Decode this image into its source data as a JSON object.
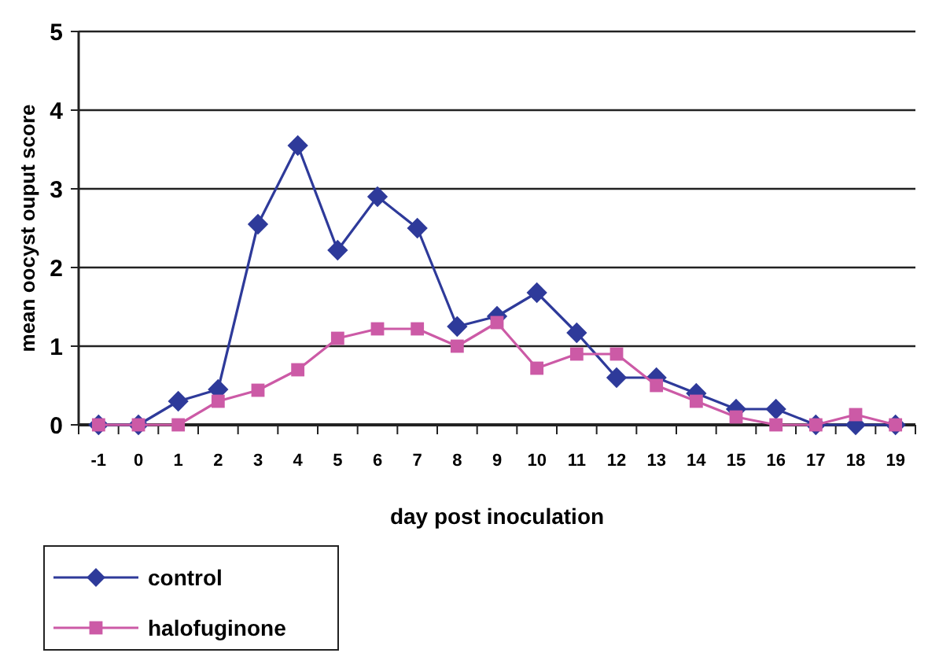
{
  "chart_data": {
    "type": "line",
    "xlabel": "day post inoculation",
    "ylabel": "mean oocyst ouput score",
    "categories": [
      "-1",
      "0",
      "1",
      "2",
      "3",
      "4",
      "5",
      "6",
      "7",
      "8",
      "9",
      "10",
      "11",
      "12",
      "13",
      "14",
      "15",
      "16",
      "17",
      "18",
      "19"
    ],
    "series": [
      {
        "name": "control",
        "color": "#2e3a9a",
        "marker": "diamond",
        "values": [
          0,
          0,
          0.3,
          0.45,
          2.55,
          3.55,
          2.22,
          2.9,
          2.5,
          1.25,
          1.38,
          1.68,
          1.17,
          0.6,
          0.6,
          0.4,
          0.2,
          0.2,
          0,
          0,
          0
        ]
      },
      {
        "name": "halofuginone",
        "color": "#cc5aa6",
        "marker": "square",
        "values": [
          0,
          0,
          0,
          0.3,
          0.44,
          0.7,
          1.1,
          1.22,
          1.22,
          1.0,
          1.3,
          0.72,
          0.9,
          0.9,
          0.5,
          0.3,
          0.1,
          0,
          0,
          0.13,
          0
        ]
      }
    ],
    "ylim": [
      0,
      5
    ],
    "yticks": [
      0,
      1,
      2,
      3,
      4,
      5
    ],
    "grid": "y",
    "legend": "bottom left",
    "line_style": "solid"
  }
}
